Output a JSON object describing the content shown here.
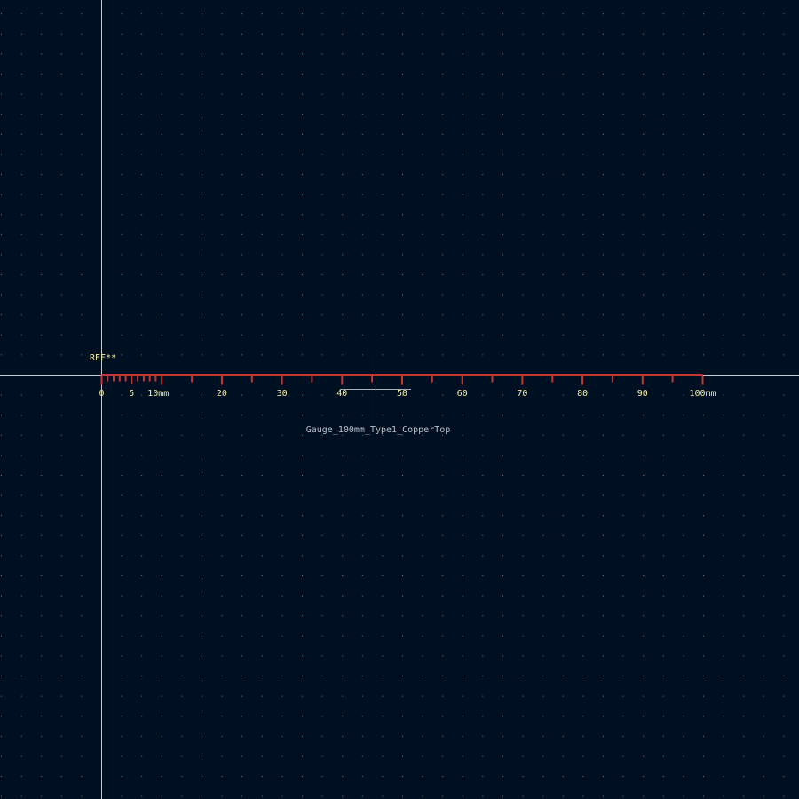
{
  "editor": {
    "reference_designator": "REF**",
    "footprint_value": "Gauge_100mm_Type1_CopperTop"
  },
  "gauge": {
    "span_mm": 100,
    "minor_tick_mm": 1,
    "minor_tick_until_mm": 10,
    "mid_tick_mm": 5,
    "major_tick_mm": 10,
    "tick_labels": [
      {
        "mm": 0,
        "text": "0"
      },
      {
        "mm": 5,
        "text": "5"
      },
      {
        "mm": 10,
        "text": "10mm"
      },
      {
        "mm": 20,
        "text": "20"
      },
      {
        "mm": 30,
        "text": "30"
      },
      {
        "mm": 40,
        "text": "40"
      },
      {
        "mm": 50,
        "text": "50"
      },
      {
        "mm": 60,
        "text": "60"
      },
      {
        "mm": 70,
        "text": "70"
      },
      {
        "mm": 80,
        "text": "80"
      },
      {
        "mm": 90,
        "text": "90"
      },
      {
        "mm": 100,
        "text": "100mm"
      }
    ]
  },
  "colors": {
    "background": "#001023",
    "grid_dot": "#6d7c8c",
    "axis_line": "#c8ccd2",
    "copper_top": "#c83434",
    "text": "#f2eda1",
    "value_text": "#b9c0c8",
    "anchor_crosshair": "#a8aeb5"
  }
}
